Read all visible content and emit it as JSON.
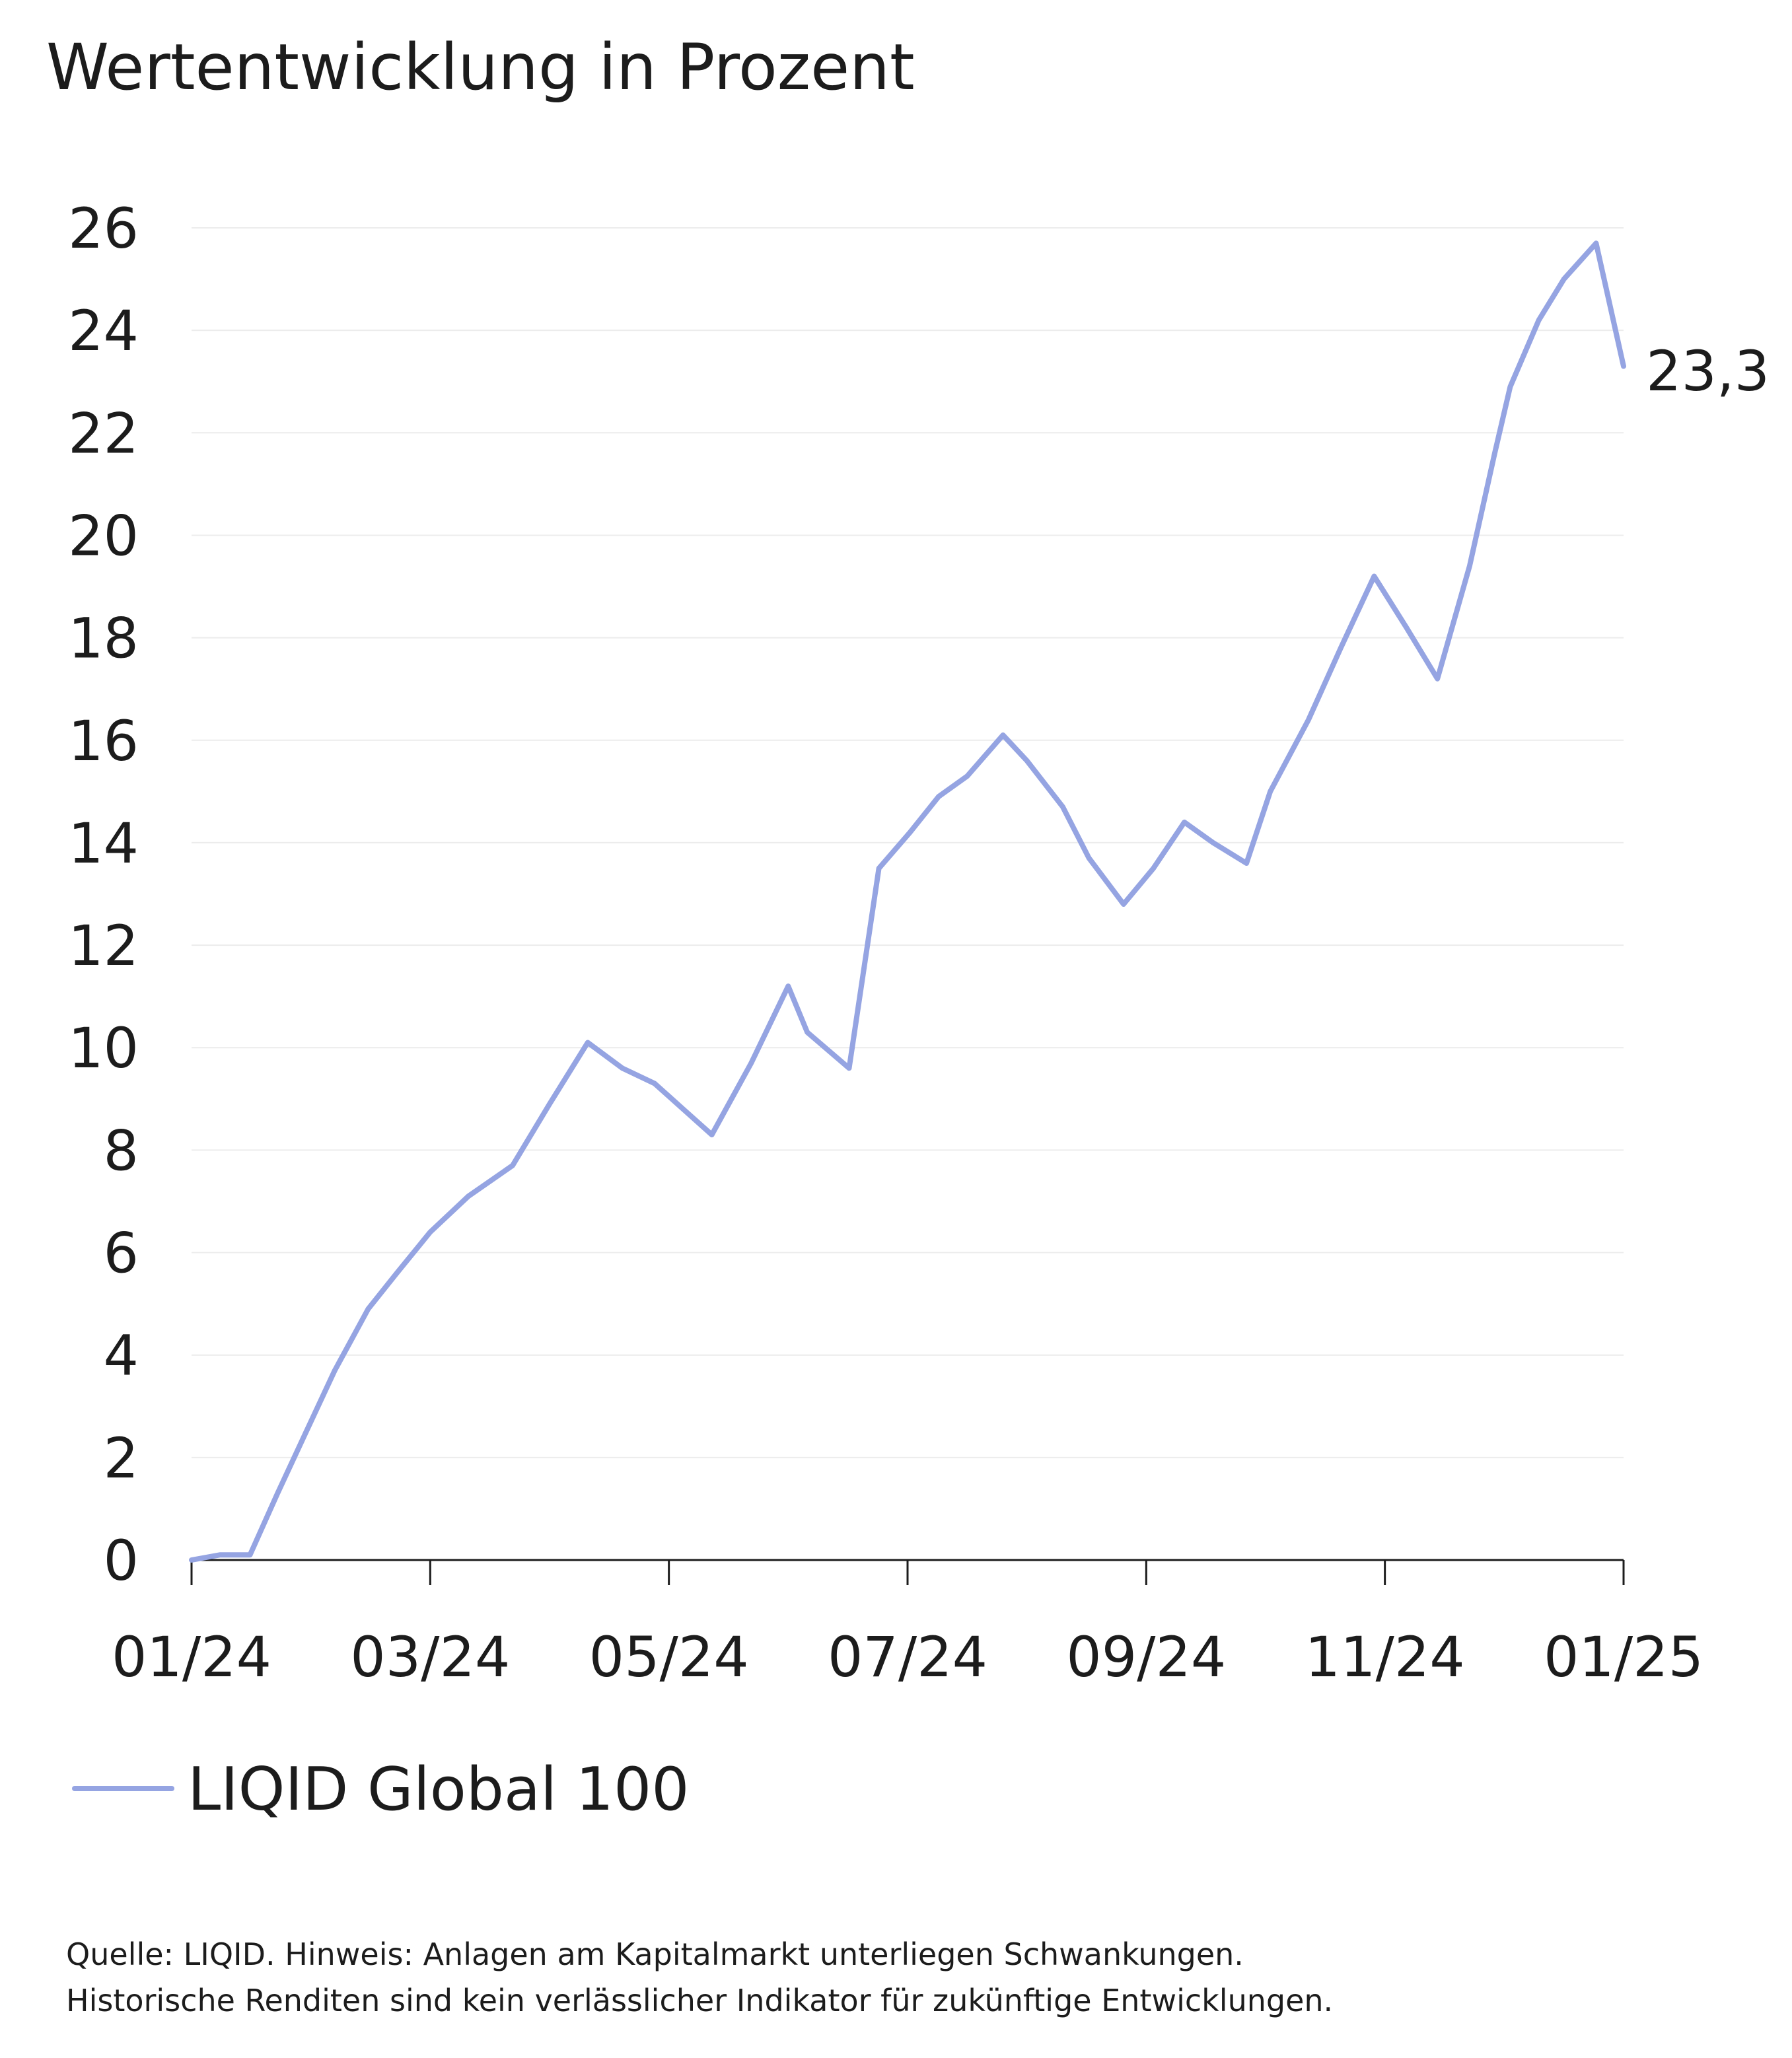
{
  "chart_data": {
    "type": "line",
    "title": "Wertentwicklung in Prozent",
    "xlabel": "",
    "ylabel": "",
    "ylim": [
      0,
      26
    ],
    "yticks": [
      "0",
      "2",
      "4",
      "6",
      "8",
      "10",
      "12",
      "14",
      "16",
      "18",
      "20",
      "22",
      "24",
      "26"
    ],
    "xticks": [
      "01/24",
      "03/24",
      "05/24",
      "07/24",
      "09/24",
      "11/24",
      "01/25"
    ],
    "xlim_months": [
      0,
      12
    ],
    "grid": true,
    "series": [
      {
        "name": "LIQID Global 100",
        "color": "#95a4e2",
        "x_months": [
          0,
          0.24,
          0.49,
          0.72,
          0.96,
          1.2,
          1.48,
          1.72,
          2.0,
          2.32,
          2.69,
          3.0,
          3.32,
          3.61,
          3.88,
          4.12,
          4.36,
          4.69,
          5.0,
          5.16,
          5.51,
          5.76,
          6.02,
          6.26,
          6.5,
          6.8,
          7.0,
          7.3,
          7.52,
          7.81,
          8.06,
          8.32,
          8.56,
          8.84,
          9.04,
          9.36,
          9.63,
          9.91,
          10.18,
          10.44
        ],
        "values": [
          0,
          0.1,
          0.1,
          1.3,
          2.5,
          3.7,
          4.9,
          5.6,
          6.4,
          7.1,
          7.7,
          8.9,
          10.1,
          9.6,
          9.3,
          8.8,
          8.3,
          9.7,
          11.2,
          10.3,
          9.6,
          13.5,
          14.2,
          14.9,
          15.3,
          16.1,
          15.6,
          14.7,
          13.7,
          12.8,
          13.5,
          14.4,
          14.0,
          13.6,
          15.0,
          16.4,
          17.8,
          19.2,
          18.2,
          17.2
        ]
      }
    ],
    "series_tail": {
      "x_months": [
        10.71,
        10.92,
        11.05,
        11.29,
        11.5,
        11.77,
        12.0
      ],
      "values": [
        19.4,
        21.6,
        22.9,
        24.2,
        25.0,
        25.7,
        23.3
      ]
    },
    "end_label": "23,3",
    "legend": {
      "position": "bottom-left",
      "entries": [
        "LIQID Global 100"
      ]
    },
    "footnote": [
      "Quelle: LIQID. Hinweis: Anlagen am Kapitalmarkt unterliegen Schwankungen.",
      "Historische Renditen sind kein verlässlicher Indikator für zukünftige Entwicklungen."
    ]
  }
}
